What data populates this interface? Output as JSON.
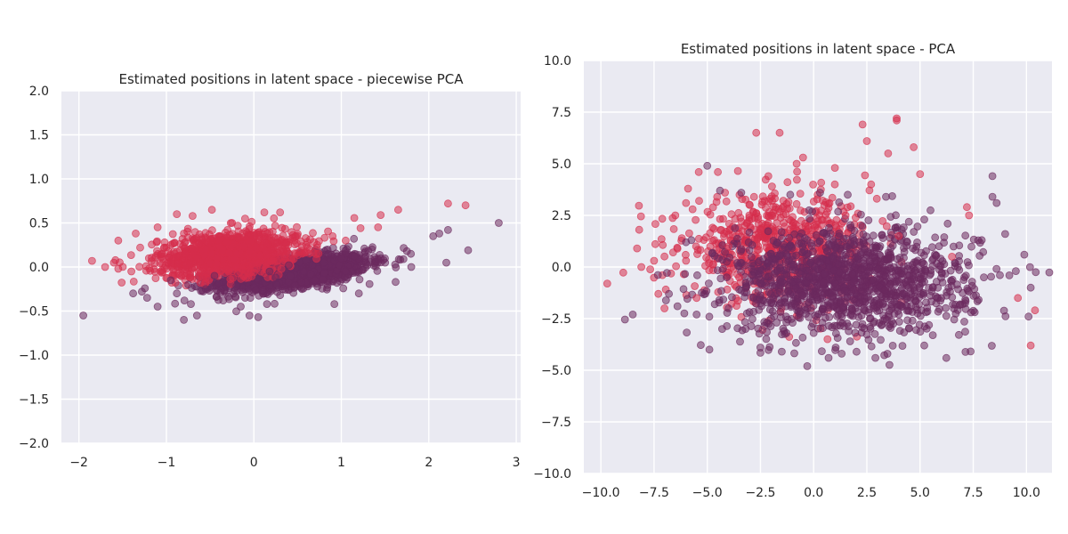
{
  "chart_data": [
    {
      "type": "scatter",
      "title": "Estimated positions in latent space - piecewise PCA",
      "xlim": [
        -2.2,
        3.05
      ],
      "ylim": [
        -2.0,
        2.0
      ],
      "xticks": [
        -2,
        -1,
        0,
        1,
        2,
        3
      ],
      "xtick_labels": [
        "−2",
        "−1",
        "0",
        "1",
        "2",
        "3"
      ],
      "yticks": [
        -2.0,
        -1.5,
        -1.0,
        -0.5,
        0.0,
        0.5,
        1.0,
        1.5,
        2.0
      ],
      "ytick_labels": [
        "−2.0",
        "−1.5",
        "−1.0",
        "−0.5",
        "0.0",
        "0.5",
        "1.0",
        "1.5",
        "2.0"
      ],
      "grid": true,
      "series": [
        {
          "color": "#6b2a5e",
          "points": [
            [
              -1.95,
              -0.55
            ],
            [
              2.8,
              0.5
            ],
            [
              2.45,
              0.19
            ],
            [
              2.2,
              0.05
            ],
            [
              2.05,
              0.35
            ],
            [
              1.8,
              0.0
            ],
            [
              1.62,
              -0.17
            ],
            [
              1.45,
              0.1
            ],
            [
              1.3,
              0.02
            ],
            [
              1.2,
              -0.3
            ],
            [
              1.15,
              0.12
            ],
            [
              0.95,
              -0.18
            ],
            [
              0.92,
              -0.42
            ],
            [
              0.8,
              0.05
            ],
            [
              0.7,
              -0.15
            ],
            [
              0.55,
              -0.25
            ],
            [
              0.42,
              -0.1
            ],
            [
              0.3,
              -0.32
            ],
            [
              0.18,
              -0.05
            ],
            [
              0.05,
              -0.57
            ],
            [
              -0.05,
              -0.55
            ],
            [
              -0.1,
              -0.35
            ],
            [
              -0.2,
              -0.22
            ],
            [
              -0.35,
              -0.38
            ],
            [
              -0.55,
              -0.25
            ],
            [
              -0.65,
              -0.55
            ],
            [
              -0.72,
              -0.42
            ],
            [
              -0.8,
              -0.6
            ],
            [
              -0.88,
              -0.3
            ],
            [
              -1.1,
              -0.45
            ],
            [
              -1.22,
              -0.35
            ],
            [
              -1.28,
              -0.28
            ],
            [
              -1.38,
              -0.3
            ],
            [
              -0.95,
              -0.15
            ],
            [
              -0.75,
              -0.2
            ],
            [
              0.6,
              0.08
            ],
            [
              0.85,
              0.15
            ],
            [
              1.05,
              -0.05
            ],
            [
              1.5,
              0.05
            ],
            [
              1.75,
              0.18
            ],
            [
              1.35,
              0.2
            ],
            [
              2.12,
              0.38
            ],
            [
              2.22,
              0.42
            ],
            [
              0.25,
              -0.12
            ],
            [
              -0.45,
              -0.1
            ],
            [
              0.4,
              0.02
            ],
            [
              1.0,
              0.1
            ],
            [
              -0.15,
              -0.45
            ],
            [
              0.15,
              -0.42
            ],
            [
              0.65,
              -0.08
            ]
          ]
        },
        {
          "color": "#d62e4c",
          "points": [
            [
              -1.85,
              0.07
            ],
            [
              -1.7,
              0.0
            ],
            [
              -1.55,
              -0.02
            ],
            [
              -1.55,
              0.3
            ],
            [
              -1.35,
              0.38
            ],
            [
              -1.3,
              0.22
            ],
            [
              -1.2,
              0.1
            ],
            [
              -1.1,
              0.45
            ],
            [
              -1.02,
              0.28
            ],
            [
              -0.88,
              0.6
            ],
            [
              -0.7,
              0.58
            ],
            [
              -0.48,
              0.65
            ],
            [
              -0.3,
              0.42
            ],
            [
              -0.1,
              0.55
            ],
            [
              0.12,
              0.62
            ],
            [
              0.3,
              0.62
            ],
            [
              0.48,
              0.35
            ],
            [
              0.72,
              0.22
            ],
            [
              0.9,
              0.35
            ],
            [
              1.05,
              0.3
            ],
            [
              1.22,
              0.44
            ],
            [
              1.42,
              0.45
            ],
            [
              1.45,
              0.59
            ],
            [
              1.65,
              0.65
            ],
            [
              2.22,
              0.72
            ],
            [
              2.42,
              0.7
            ],
            [
              -1.4,
              -0.05
            ],
            [
              -1.6,
              0.05
            ],
            [
              -0.95,
              0.05
            ],
            [
              -0.55,
              0.2
            ],
            [
              -0.4,
              0.3
            ],
            [
              -0.2,
              0.15
            ],
            [
              0.0,
              0.35
            ],
            [
              0.2,
              0.2
            ],
            [
              -0.8,
              0.38
            ],
            [
              -1.05,
              0.15
            ],
            [
              -0.65,
              0.1
            ],
            [
              -0.25,
              0.5
            ],
            [
              0.35,
              0.12
            ],
            [
              0.6,
              0.25
            ]
          ]
        }
      ],
      "clouds": [
        {
          "color": "#6b2a5e",
          "count": 1600,
          "x_mean": 0.45,
          "x_sd": 0.42,
          "slope": 0.13,
          "intercept": -0.12,
          "y_sd": 0.085
        },
        {
          "color": "#d62e4c",
          "count": 1100,
          "x_mean": -0.3,
          "x_sd": 0.4,
          "slope": 0.1,
          "intercept": 0.18,
          "y_sd": 0.12
        }
      ]
    },
    {
      "type": "scatter",
      "title": "Estimated positions in latent space - PCA",
      "xlim": [
        -10.8,
        11.2
      ],
      "ylim": [
        -10.0,
        10.0
      ],
      "xticks": [
        -10.0,
        -7.5,
        -5.0,
        -2.5,
        0.0,
        2.5,
        5.0,
        7.5,
        10.0
      ],
      "xtick_labels": [
        "−10.0",
        "−7.5",
        "−5.0",
        "−2.5",
        "0.0",
        "2.5",
        "5.0",
        "7.5",
        "10.0"
      ],
      "yticks": [
        -10.0,
        -7.5,
        -5.0,
        -2.5,
        0.0,
        2.5,
        5.0,
        7.5,
        10.0
      ],
      "ytick_labels": [
        "−10.0",
        "−7.5",
        "−5.0",
        "−2.5",
        "0.0",
        "2.5",
        "5.0",
        "7.5",
        "10.0"
      ],
      "grid": true,
      "series": [
        {
          "color": "#d62e4c",
          "points": [
            [
              -9.7,
              -0.8
            ],
            [
              -8.2,
              1.8
            ],
            [
              -8.3,
              0.9
            ],
            [
              -8.1,
              0.0
            ],
            [
              -7.5,
              0.3
            ],
            [
              -7.3,
              -1.3
            ],
            [
              -6.5,
              2.5
            ],
            [
              -6.0,
              3.1
            ],
            [
              -5.4,
              4.6
            ],
            [
              -4.5,
              4.6
            ],
            [
              -2.7,
              6.5
            ],
            [
              -1.6,
              6.5
            ],
            [
              -0.8,
              5.0
            ],
            [
              -0.5,
              5.3
            ],
            [
              1.0,
              4.8
            ],
            [
              2.3,
              6.9
            ],
            [
              2.5,
              6.1
            ],
            [
              2.7,
              4.0
            ],
            [
              3.9,
              7.2
            ],
            [
              3.9,
              7.1
            ],
            [
              4.7,
              5.8
            ],
            [
              5.0,
              4.5
            ],
            [
              3.5,
              5.5
            ],
            [
              7.2,
              2.9
            ],
            [
              7.3,
              2.5
            ],
            [
              10.2,
              -3.8
            ],
            [
              10.4,
              -2.1
            ],
            [
              9.6,
              -1.5
            ],
            [
              -6.0,
              0.3
            ],
            [
              -5.5,
              -1.5
            ],
            [
              -4.0,
              1.0
            ],
            [
              -3.0,
              3.0
            ],
            [
              -2.0,
              2.5
            ],
            [
              -1.0,
              2.0
            ],
            [
              0.5,
              3.0
            ],
            [
              1.5,
              2.5
            ],
            [
              -3.5,
              -0.5
            ],
            [
              -2.5,
              1.5
            ],
            [
              4.0,
              1.5
            ],
            [
              6.5,
              0.5
            ]
          ]
        },
        {
          "color": "#6b2a5e",
          "points": [
            [
              -8.5,
              -2.3
            ],
            [
              -5.0,
              4.9
            ],
            [
              -4.9,
              -4.0
            ],
            [
              -3.2,
              -3.0
            ],
            [
              -2.5,
              -3.9
            ],
            [
              -1.5,
              -4.1
            ],
            [
              -0.3,
              -4.8
            ],
            [
              0.7,
              -4.4
            ],
            [
              2.9,
              -4.4
            ],
            [
              5.2,
              -3.8
            ],
            [
              5.6,
              -3.3
            ],
            [
              7.4,
              -2.2
            ],
            [
              8.4,
              4.4
            ],
            [
              8.6,
              3.1
            ],
            [
              8.4,
              3.4
            ],
            [
              9.9,
              0.6
            ],
            [
              10.2,
              -1.0
            ],
            [
              10.1,
              -2.4
            ],
            [
              9.0,
              1.6
            ],
            [
              7.9,
              1.3
            ],
            [
              6.3,
              2.1
            ],
            [
              5.2,
              2.3
            ],
            [
              3.4,
              3.4
            ],
            [
              1.6,
              3.5
            ],
            [
              0.3,
              3.6
            ],
            [
              -1.1,
              3.5
            ],
            [
              -3.4,
              3.6
            ],
            [
              -4.4,
              3.7
            ],
            [
              -6.0,
              1.2
            ],
            [
              -6.8,
              -1.3
            ],
            [
              -6.4,
              -1.9
            ],
            [
              -5.5,
              -2.3
            ],
            [
              -4.0,
              -2.0
            ],
            [
              -2.0,
              -2.5
            ],
            [
              0.0,
              -3.2
            ],
            [
              2.0,
              -2.8
            ],
            [
              4.0,
              -2.3
            ],
            [
              6.0,
              -1.5
            ],
            [
              8.0,
              -0.5
            ],
            [
              9.5,
              -0.2
            ]
          ]
        }
      ],
      "clouds": [
        {
          "color": "#d62e4c",
          "count": 700,
          "x_mean": -1.6,
          "x_sd": 2.2,
          "y_mean": 0.9,
          "y_sd": 1.25
        },
        {
          "color": "#6b2a5e",
          "count": 1300,
          "x_mean": 1.6,
          "x_sd": 2.9,
          "y_mean": -0.7,
          "y_sd": 1.25
        }
      ]
    }
  ]
}
